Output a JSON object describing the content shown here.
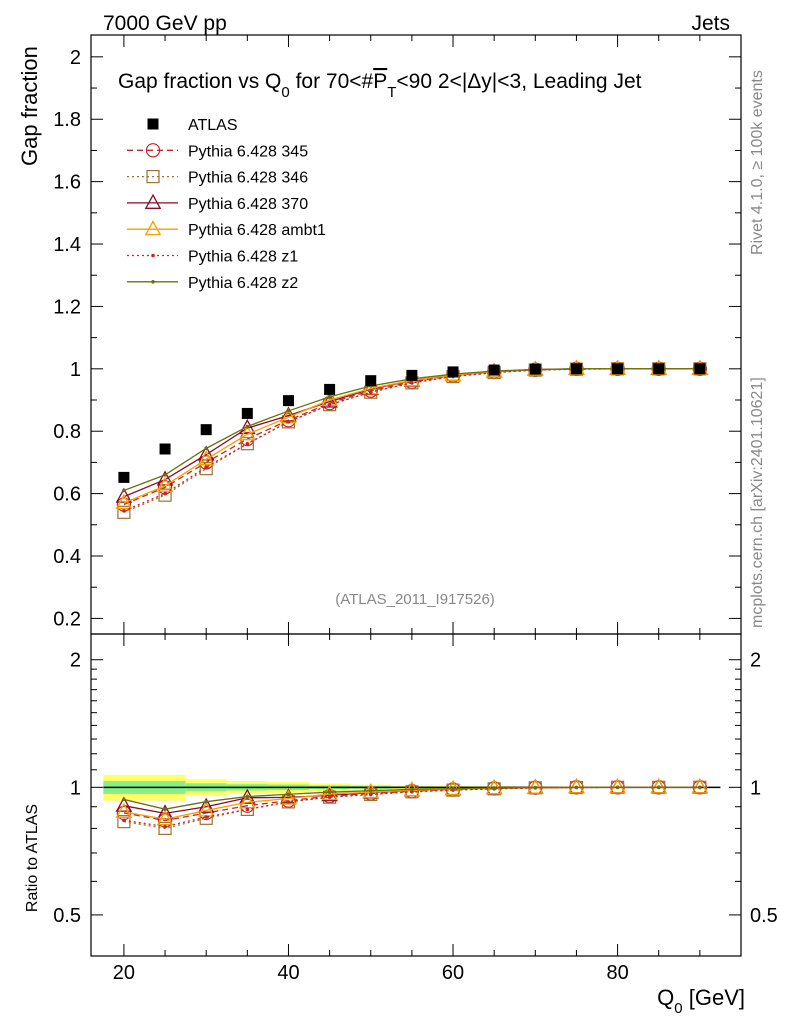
{
  "header": {
    "left": "7000 GeV pp",
    "right": "Jets"
  },
  "title": {
    "prefix": "Gap fraction vs Q",
    "q_sub": "0",
    "mid": " for 70<#",
    "pt_letter": "P",
    "pt_sub": "T",
    "suffix": "<90  2<|Δy|<3, Leading Jet"
  },
  "side_labels": {
    "rivet": "Rivet 4.1.0, ≥ 100k events",
    "mcplots": "mcplots.cern.ch [arXiv:2401.10621]"
  },
  "watermark": "(ATLAS_2011_I917526)",
  "xlabel": {
    "main": "Q",
    "sub": "0",
    "unit": " [GeV]"
  },
  "colors": {
    "p345": "#c0282d",
    "p346": "#a07030",
    "p370": "#8b0a26",
    "ambt1": "#f5a000",
    "z1": "#d02020",
    "z2": "#6b7010",
    "band_outer": "#ffff66",
    "band_inner": "#88ee88"
  },
  "chart_data": [
    {
      "type": "scatter",
      "panel": "main",
      "ylabel": "Gap fraction",
      "xlim": [
        16,
        95
      ],
      "ylim": [
        0.15,
        2.07
      ],
      "x_ticks": [
        20,
        40,
        60,
        80
      ],
      "y_ticks": [
        "0.2",
        "0.4",
        "0.6",
        "0.8",
        "1",
        "1.2",
        "1.4",
        "1.6",
        "1.8",
        "2"
      ],
      "x": [
        20,
        25,
        30,
        35,
        40,
        45,
        50,
        55,
        60,
        65,
        70,
        75,
        80,
        85,
        90
      ],
      "series": [
        {
          "name": "ATLAS",
          "key": "atlas",
          "values": [
            0.652,
            0.743,
            0.805,
            0.857,
            0.898,
            0.934,
            0.962,
            0.979,
            0.99,
            0.996,
            0.999,
            1.0,
            1.0,
            1.0,
            1.0
          ]
        },
        {
          "name": "Pythia 6.428 345",
          "key": "p345",
          "values": [
            0.565,
            0.62,
            0.7,
            0.775,
            0.835,
            0.89,
            0.93,
            0.958,
            0.978,
            0.99,
            0.997,
            1.0,
            1.0,
            1.0,
            1.0
          ]
        },
        {
          "name": "Pythia 6.428 346",
          "key": "p346",
          "values": [
            0.54,
            0.595,
            0.68,
            0.76,
            0.83,
            0.885,
            0.925,
            0.955,
            0.975,
            0.988,
            0.996,
            0.999,
            1.0,
            1.0,
            1.0
          ]
        },
        {
          "name": "Pythia 6.428 370",
          "key": "p370",
          "values": [
            0.59,
            0.645,
            0.725,
            0.81,
            0.85,
            0.895,
            0.935,
            0.962,
            0.98,
            0.991,
            0.997,
            1.0,
            1.0,
            1.0,
            1.0
          ]
        },
        {
          "name": "Pythia 6.428 ambt1",
          "key": "ambt1",
          "values": [
            0.57,
            0.625,
            0.71,
            0.79,
            0.845,
            0.9,
            0.937,
            0.963,
            0.98,
            0.991,
            0.997,
            1.0,
            1.0,
            1.0,
            1.0
          ]
        },
        {
          "name": "Pythia 6.428 z1",
          "key": "z1",
          "values": [
            0.545,
            0.6,
            0.685,
            0.76,
            0.83,
            0.885,
            0.925,
            0.955,
            0.975,
            0.988,
            0.996,
            0.999,
            1.0,
            1.0,
            1.0
          ]
        },
        {
          "name": "Pythia 6.428 z2",
          "key": "z2",
          "values": [
            0.61,
            0.66,
            0.745,
            0.815,
            0.865,
            0.91,
            0.945,
            0.968,
            0.983,
            0.993,
            0.998,
            1.0,
            1.0,
            1.0,
            1.0
          ]
        }
      ]
    },
    {
      "type": "line",
      "panel": "ratio",
      "ylabel": "Ratio to ATLAS",
      "yscale": "log",
      "ylim": [
        0.4,
        2.3
      ],
      "y_ticks": [
        "0.5",
        "1",
        "2"
      ],
      "x": [
        20,
        25,
        30,
        35,
        40,
        45,
        50,
        55,
        60,
        65,
        70,
        75,
        80,
        85,
        90
      ],
      "series": [
        {
          "name": "Pythia 6.428 345",
          "key": "p345",
          "values": [
            0.87,
            0.835,
            0.87,
            0.905,
            0.93,
            0.953,
            0.967,
            0.979,
            0.988,
            0.994,
            0.998,
            1.0,
            1.0,
            1.0,
            1.0
          ]
        },
        {
          "name": "Pythia 6.428 346",
          "key": "p346",
          "values": [
            0.83,
            0.8,
            0.845,
            0.887,
            0.924,
            0.948,
            0.962,
            0.976,
            0.985,
            0.992,
            0.997,
            0.999,
            1.0,
            1.0,
            1.0
          ]
        },
        {
          "name": "Pythia 6.428 370",
          "key": "p370",
          "values": [
            0.905,
            0.868,
            0.9,
            0.945,
            0.947,
            0.958,
            0.972,
            0.983,
            0.99,
            0.995,
            0.998,
            1.0,
            1.0,
            1.0,
            1.0
          ]
        },
        {
          "name": "Pythia 6.428 ambt1",
          "key": "ambt1",
          "values": [
            0.875,
            0.841,
            0.882,
            0.922,
            0.941,
            0.964,
            0.974,
            0.984,
            0.99,
            0.995,
            0.998,
            1.0,
            1.0,
            1.0,
            1.0
          ]
        },
        {
          "name": "Pythia 6.428 z1",
          "key": "z1",
          "values": [
            0.836,
            0.808,
            0.851,
            0.887,
            0.924,
            0.948,
            0.962,
            0.976,
            0.985,
            0.992,
            0.997,
            0.999,
            1.0,
            1.0,
            1.0
          ]
        },
        {
          "name": "Pythia 6.428 z2",
          "key": "z2",
          "values": [
            0.936,
            0.888,
            0.925,
            0.951,
            0.963,
            0.974,
            0.982,
            0.989,
            0.993,
            0.997,
            0.999,
            1.0,
            1.0,
            1.0,
            1.0
          ]
        }
      ],
      "band": {
        "x_edges": [
          17.5,
          22.5,
          27.5,
          32.5,
          37.5,
          42.5,
          47.5,
          52.5,
          57.5,
          62.5,
          67.5,
          72.5,
          77.5,
          82.5,
          87.5,
          92.5
        ],
        "outer_half_width": [
          0.07,
          0.07,
          0.045,
          0.035,
          0.03,
          0.02,
          0.015,
          0.01,
          0.008,
          0.006,
          0.004,
          0.003,
          0.002,
          0.002,
          0.002
        ],
        "inner_half_width": [
          0.035,
          0.035,
          0.022,
          0.017,
          0.015,
          0.01,
          0.008,
          0.005,
          0.004,
          0.003,
          0.002,
          0.0015,
          0.001,
          0.001,
          0.001
        ]
      }
    }
  ]
}
